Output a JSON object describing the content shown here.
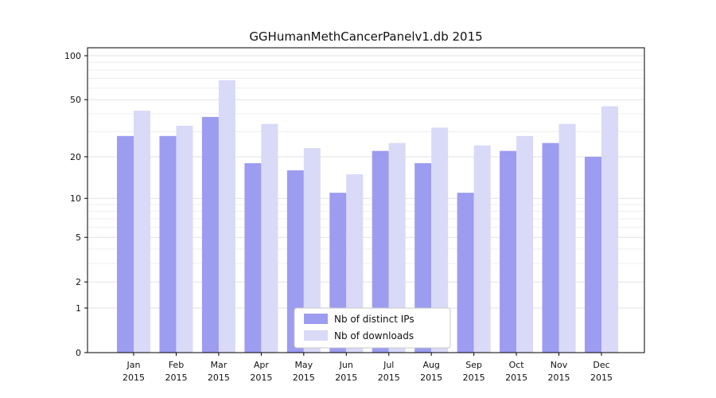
{
  "chart_data": {
    "type": "bar",
    "title": "GGHumanMethCancerPanelv1.db 2015",
    "categories": [
      "Jan 2015",
      "Feb 2015",
      "Mar 2015",
      "Apr 2015",
      "May 2015",
      "Jun 2015",
      "Jul 2015",
      "Aug 2015",
      "Sep 2015",
      "Oct 2015",
      "Nov 2015",
      "Dec 2015"
    ],
    "series": [
      {
        "name": "Nb of distinct IPs",
        "color": "#9c9cf0",
        "values": [
          28,
          28,
          38,
          18,
          16,
          11,
          22,
          18,
          11,
          22,
          25,
          20
        ]
      },
      {
        "name": "Nb of downloads",
        "color": "#d9d9f8",
        "values": [
          42,
          33,
          68,
          34,
          23,
          15,
          25,
          32,
          24,
          28,
          34,
          45
        ]
      }
    ],
    "yticks": [
      0,
      1,
      2,
      5,
      10,
      20,
      50,
      100
    ],
    "scale": "log1p",
    "ylim": [
      0,
      100
    ],
    "grid": true,
    "legend_position": "lower center",
    "colors": {
      "axis": "#000000",
      "grid_major": "#e2e2e2",
      "grid_minor": "#efefef",
      "legend_border": "#c8c8c8",
      "legend_bg": "#ffffff"
    }
  }
}
